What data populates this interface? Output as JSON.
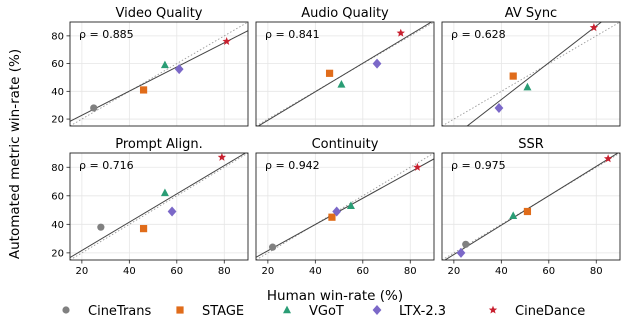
{
  "ylabel": "Automated metric win-rate (%)",
  "xlabel": "Human win-rate (%)",
  "legend": [
    {
      "name": "CineTrans",
      "marker": "circle",
      "color": "#808080"
    },
    {
      "name": "STAGE",
      "marker": "square",
      "color": "#E06C1A"
    },
    {
      "name": "VGoT",
      "marker": "triangle",
      "color": "#2A9D75"
    },
    {
      "name": "LTX-2.3",
      "marker": "diamond",
      "color": "#7B68C8"
    },
    {
      "name": "CineDance",
      "marker": "star",
      "color": "#C8202F"
    }
  ],
  "chart_data": [
    {
      "type": "scatter",
      "title": "Video Quality",
      "rho": "ρ = 0.885",
      "xlim": [
        15,
        90
      ],
      "ylim": [
        15,
        90
      ],
      "xticks": [
        20,
        40,
        60,
        80
      ],
      "yticks": [
        20,
        40,
        60,
        80
      ],
      "grid": true,
      "points": [
        {
          "series": "CineTrans",
          "x": 25,
          "y": 28
        },
        {
          "series": "STAGE",
          "x": 46,
          "y": 41
        },
        {
          "series": "VGoT",
          "x": 55,
          "y": 59
        },
        {
          "series": "LTX-2.3",
          "x": 61,
          "y": 56
        },
        {
          "series": "CineDance",
          "x": 81,
          "y": 76
        }
      ]
    },
    {
      "type": "scatter",
      "title": "Audio Quality",
      "rho": "ρ = 0.841",
      "xlim": [
        15,
        90
      ],
      "ylim": [
        15,
        90
      ],
      "xticks": [
        20,
        40,
        60,
        80
      ],
      "yticks": [
        20,
        40,
        60,
        80
      ],
      "grid": true,
      "points": [
        {
          "series": "STAGE",
          "x": 46,
          "y": 53
        },
        {
          "series": "VGoT",
          "x": 51,
          "y": 45
        },
        {
          "series": "LTX-2.3",
          "x": 66,
          "y": 60
        },
        {
          "series": "CineDance",
          "x": 76,
          "y": 82
        }
      ]
    },
    {
      "type": "scatter",
      "title": "AV Sync",
      "rho": "ρ = 0.628",
      "xlim": [
        15,
        90
      ],
      "ylim": [
        15,
        90
      ],
      "xticks": [
        20,
        40,
        60,
        80
      ],
      "yticks": [
        20,
        40,
        60,
        80
      ],
      "grid": true,
      "points": [
        {
          "series": "STAGE",
          "x": 45,
          "y": 51
        },
        {
          "series": "VGoT",
          "x": 51,
          "y": 43
        },
        {
          "series": "LTX-2.3",
          "x": 39,
          "y": 28
        },
        {
          "series": "CineDance",
          "x": 79,
          "y": 86
        }
      ]
    },
    {
      "type": "scatter",
      "title": "Prompt Align.",
      "rho": "ρ = 0.716",
      "xlim": [
        15,
        90
      ],
      "ylim": [
        15,
        90
      ],
      "xticks": [
        20,
        40,
        60,
        80
      ],
      "yticks": [
        20,
        40,
        60,
        80
      ],
      "grid": true,
      "points": [
        {
          "series": "CineTrans",
          "x": 28,
          "y": 38
        },
        {
          "series": "STAGE",
          "x": 46,
          "y": 37
        },
        {
          "series": "VGoT",
          "x": 55,
          "y": 62
        },
        {
          "series": "LTX-2.3",
          "x": 58,
          "y": 49
        },
        {
          "series": "CineDance",
          "x": 79,
          "y": 87
        }
      ]
    },
    {
      "type": "scatter",
      "title": "Continuity",
      "rho": "ρ = 0.942",
      "xlim": [
        15,
        90
      ],
      "ylim": [
        15,
        90
      ],
      "xticks": [
        20,
        40,
        60,
        80
      ],
      "yticks": [
        20,
        40,
        60,
        80
      ],
      "grid": true,
      "points": [
        {
          "series": "CineTrans",
          "x": 22,
          "y": 24
        },
        {
          "series": "STAGE",
          "x": 47,
          "y": 45
        },
        {
          "series": "VGoT",
          "x": 55,
          "y": 53
        },
        {
          "series": "LTX-2.3",
          "x": 49,
          "y": 49
        },
        {
          "series": "CineDance",
          "x": 83,
          "y": 80
        }
      ]
    },
    {
      "type": "scatter",
      "title": "SSR",
      "rho": "ρ = 0.975",
      "xlim": [
        15,
        90
      ],
      "ylim": [
        15,
        90
      ],
      "xticks": [
        20,
        40,
        60,
        80
      ],
      "yticks": [
        20,
        40,
        60,
        80
      ],
      "grid": true,
      "points": [
        {
          "series": "CineTrans",
          "x": 25,
          "y": 26
        },
        {
          "series": "STAGE",
          "x": 51,
          "y": 49
        },
        {
          "series": "VGoT",
          "x": 45,
          "y": 46
        },
        {
          "series": "LTX-2.3",
          "x": 23,
          "y": 20
        },
        {
          "series": "CineDance",
          "x": 85,
          "y": 86
        }
      ]
    }
  ]
}
